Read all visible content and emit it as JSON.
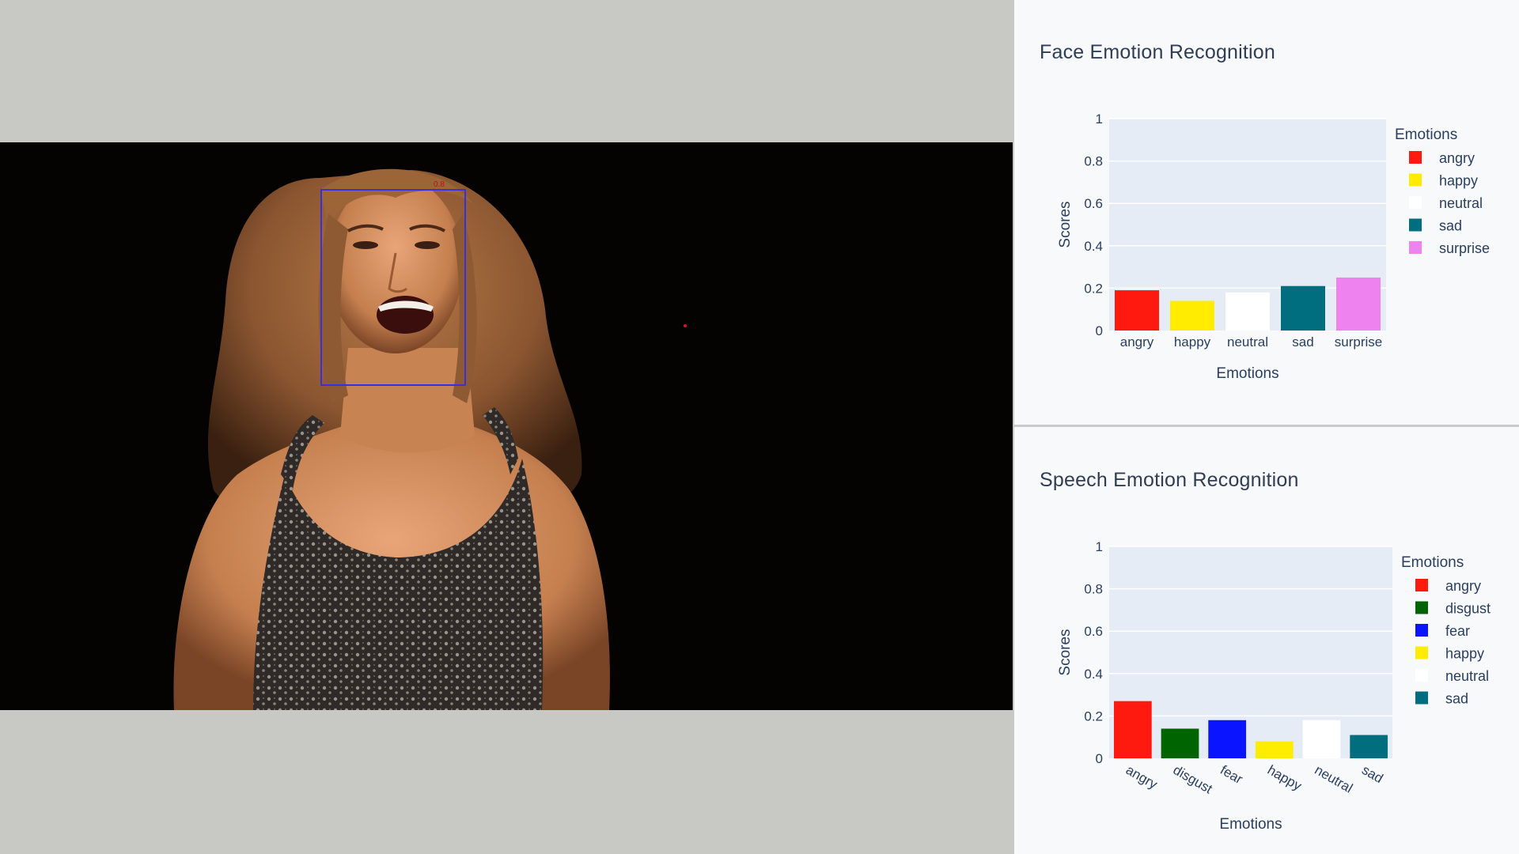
{
  "colors": {
    "angry": "#ff1a10",
    "disgust": "#006400",
    "fear": "#0a14ff",
    "happy": "#ffec00",
    "neutral": "#ffffff",
    "sad": "#006e7f",
    "surprise": "#ee82ee",
    "plot_bg": "#e5ecf6",
    "bbox": "#3a2fd8"
  },
  "video": {
    "face_box_score": "0.8"
  },
  "face_chart": {
    "title": "Face Emotion Recognition",
    "chart_data": {
      "type": "bar",
      "categories": [
        "angry",
        "happy",
        "neutral",
        "sad",
        "surprise"
      ],
      "values": [
        0.19,
        0.14,
        0.18,
        0.21,
        0.25
      ],
      "xlabel": "Emotions",
      "ylabel": "Scores",
      "ylim": [
        0,
        1
      ],
      "yticks": [
        "0",
        "0.2",
        "0.4",
        "0.6",
        "0.8",
        "1"
      ],
      "legend_title": "Emotions",
      "legend": [
        "angry",
        "happy",
        "neutral",
        "sad",
        "surprise"
      ],
      "legend_position": "right",
      "grid": true
    }
  },
  "speech_chart": {
    "title": "Speech Emotion Recognition",
    "chart_data": {
      "type": "bar",
      "categories": [
        "angry",
        "disgust",
        "fear",
        "happy",
        "neutral",
        "sad"
      ],
      "values": [
        0.27,
        0.14,
        0.18,
        0.08,
        0.18,
        0.11
      ],
      "xlabel": "Emotions",
      "ylabel": "Scores",
      "ylim": [
        0,
        1
      ],
      "yticks": [
        "0",
        "0.2",
        "0.4",
        "0.6",
        "0.8",
        "1"
      ],
      "legend_title": "Emotions",
      "legend": [
        "angry",
        "disgust",
        "fear",
        "happy",
        "neutral",
        "sad"
      ],
      "legend_position": "right",
      "grid": true,
      "xtick_rotation": "angled"
    }
  }
}
